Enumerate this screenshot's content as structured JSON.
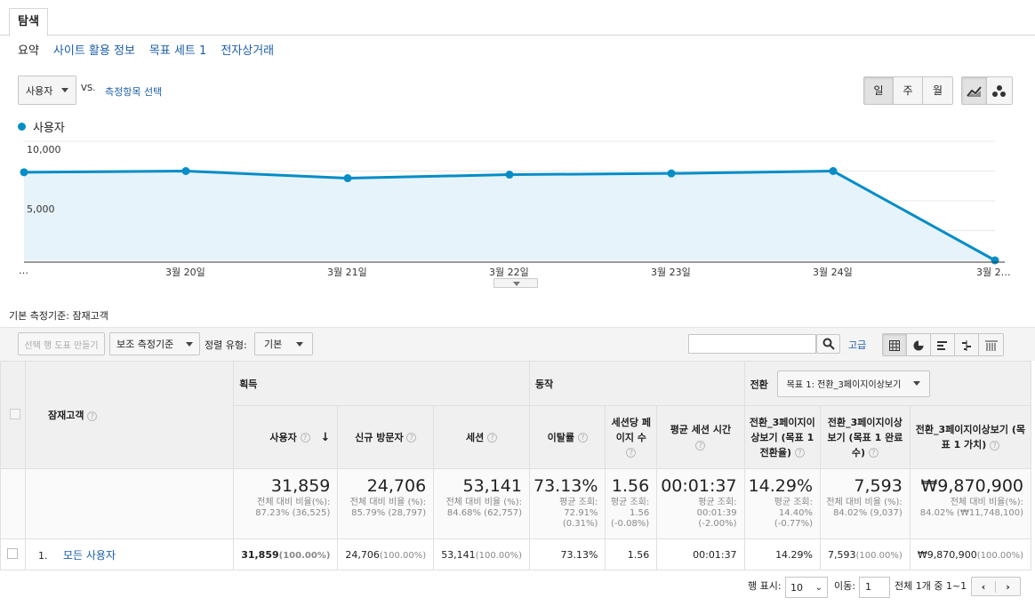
{
  "tabs": {
    "active": "탐색"
  },
  "subnav": [
    "요약",
    "사이트 활용 정보",
    "목표 세트 1",
    "전자상거래"
  ],
  "metric_select": {
    "value": "사용자",
    "vs_label": "VS.",
    "compare_link": "측정항목 선택"
  },
  "granularity": {
    "day": "일",
    "week": "주",
    "month": "월"
  },
  "chart_icons": [
    "line-chart-icon",
    "motion-chart-icon"
  ],
  "colors": {
    "series": "#058dc7",
    "area": "#e6f3fa"
  },
  "chart_data": {
    "type": "area",
    "series": [
      {
        "name": "사용자",
        "values": [
          7400,
          7500,
          6900,
          7200,
          7300,
          7500,
          0
        ]
      }
    ],
    "categories": [
      "…",
      "3월 20일",
      "3월 21일",
      "3월 22일",
      "3월 23일",
      "3월 24일",
      "3월 2…"
    ],
    "y_ticks": [
      "10,000",
      "5,000"
    ],
    "ylim": [
      0,
      10000
    ],
    "grid": true
  },
  "primary_dim": {
    "label": "기본 측정기준:",
    "value": "잠재고객"
  },
  "toolbar": {
    "create_chart": "선택 행 도표 만들기",
    "secondary_dim": "보조 측정기준",
    "sort_label": "정렬 유형:",
    "sort_value": "기본",
    "search_placeholder": "",
    "advanced": "고급"
  },
  "table": {
    "dim_header": "잠재고객",
    "groups": {
      "acquisition": "획득",
      "behavior": "동작",
      "conversion": "전환"
    },
    "goal_select": "목표 1: 전환_3페이지이상보기",
    "columns": [
      "사용자",
      "신규 방문자",
      "세션",
      "이탈률",
      "세션당 페이지 수",
      "평균 세션 시간",
      "전환_3페이지이상보기 (목표 1 전환율)",
      "전환_3페이지이상보기 (목표 1 완료 수)",
      "전환_3페이지이상보기 (목표 1 가치)"
    ],
    "totals": [
      {
        "main": "31,859",
        "sub": "전체 대비 비율(%): 87.23% (36,525)"
      },
      {
        "main": "24,706",
        "sub": "전체 대비 비율 (%): 85.79% (28,797)"
      },
      {
        "main": "53,141",
        "sub": "전체 대비 비율 (%): 84.68% (62,757)"
      },
      {
        "main": "73.13%",
        "sub": "평균 조회: 72.91% (0.31%)"
      },
      {
        "main": "1.56",
        "sub": "평균 조회: 1.56 (-0.08%)"
      },
      {
        "main": "00:01:37",
        "sub": "평균 조회: 00:01:39 (-2.00%)"
      },
      {
        "main": "14.29%",
        "sub": "평균 조회: 14.40% (-0.77%)"
      },
      {
        "main": "7,593",
        "sub": "전체 대비 비율 (%): 84.02% (9,037)"
      },
      {
        "main": "₩9,870,900",
        "sub": "전체 대비 비율(%): 84.02% (₩11,748,100)"
      }
    ],
    "rows": [
      {
        "index": "1.",
        "name": "모든 사용자",
        "cells": [
          {
            "v": "31,859",
            "p": "(100.00%)"
          },
          {
            "v": "24,706",
            "p": "(100.00%)"
          },
          {
            "v": "53,141",
            "p": "(100.00%)"
          },
          {
            "v": "73.13%",
            "p": ""
          },
          {
            "v": "1.56",
            "p": ""
          },
          {
            "v": "00:01:37",
            "p": ""
          },
          {
            "v": "14.29%",
            "p": ""
          },
          {
            "v": "7,593",
            "p": "(100.00%)"
          },
          {
            "v": "₩9,870,900",
            "p": "(100.00%)"
          }
        ]
      }
    ]
  },
  "pager": {
    "rows_label": "행 표시:",
    "rows_value": "10",
    "goto_label": "이동:",
    "goto_value": "1",
    "range_text": "전체 1개 중 1~1"
  }
}
